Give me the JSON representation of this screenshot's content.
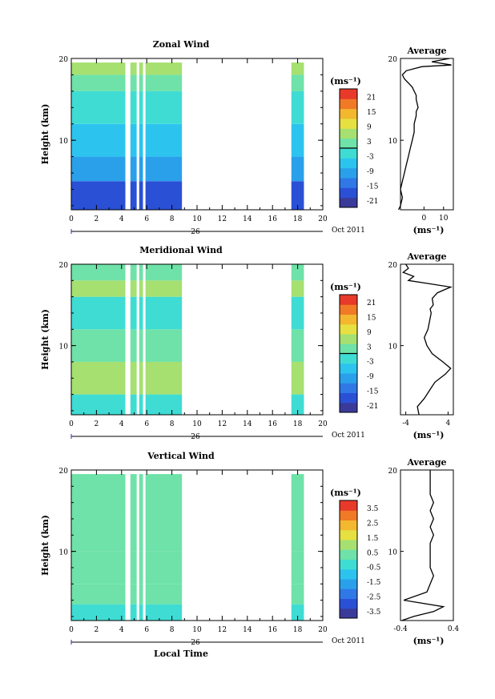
{
  "colors": {
    "zonal": [
      "#3a3a9a",
      "#2a50d6",
      "#2f78e6",
      "#2aa0ea",
      "#2cc4ef",
      "#3fdcd4",
      "#6ee2a8",
      "#a6e070",
      "#e6e040",
      "#f3b730",
      "#f07a26",
      "#e8392a"
    ],
    "vertical": [
      "#3a3a9a",
      "#2a50d6",
      "#2f78e6",
      "#2aa0ea",
      "#2cc4ef",
      "#3fdcd4",
      "#6ee2a8",
      "#a6e070",
      "#e6e040",
      "#f3b730",
      "#f07a26",
      "#e8392a"
    ]
  },
  "chart_data": [
    {
      "type": "heatmap",
      "title": "Zonal Wind",
      "ylabel": "Height (km)",
      "xlim": [
        0,
        20
      ],
      "ylim": [
        1.5,
        20
      ],
      "x_ticks": [
        "0",
        "2",
        "4",
        "6",
        "8",
        "10",
        "12",
        "14",
        "16",
        "18",
        "20"
      ],
      "y_ticks": [
        "20",
        "10"
      ],
      "date_center": "26",
      "date_right": "Oct 2011",
      "gaps": [
        [
          0,
          8.8
        ],
        [
          17.5,
          18.5
        ]
      ],
      "blank_cols": [
        4.3,
        4.7,
        5.2,
        5.4,
        5.7,
        5.9
      ],
      "colorbar": {
        "unit": "(ms⁻¹)",
        "ticks": [
          "21",
          "15",
          "9",
          "3",
          "-3",
          "-9",
          "-15",
          "-21"
        ],
        "min": -24,
        "max": 24,
        "zero_line": true
      },
      "field": [
        {
          "z": [
            1.5,
            5
          ],
          "value": -18
        },
        {
          "z": [
            5,
            8
          ],
          "value": -12
        },
        {
          "z": [
            8,
            12
          ],
          "value": -6
        },
        {
          "z": [
            12,
            16
          ],
          "value": -3
        },
        {
          "z": [
            16,
            18
          ],
          "value": 0
        },
        {
          "z": [
            18,
            19.5
          ],
          "value": 6
        }
      ],
      "average": {
        "title": "Average",
        "xlabel": "(ms⁻¹)",
        "xlim": [
          -12,
          15
        ],
        "x_ticks": [
          "0",
          "10"
        ],
        "x_tick_values": [
          0,
          10
        ],
        "y_ticks": [
          "20",
          "10"
        ],
        "x": [
          -13,
          -12,
          -11,
          -12,
          -11,
          -10,
          -9,
          -8,
          -7,
          -6,
          -5,
          -5,
          -4,
          -4,
          -3,
          -4,
          -4,
          -5,
          -6,
          -8,
          -10,
          -11,
          -9,
          -1,
          14,
          4,
          13
        ],
        "z": [
          1.5,
          2,
          3,
          4,
          5,
          6,
          7,
          8,
          9,
          10,
          11,
          12,
          13,
          13.5,
          14,
          15,
          15.5,
          16,
          16.5,
          17,
          17.5,
          18,
          18.5,
          19,
          19.2,
          19.6,
          20
        ]
      }
    },
    {
      "type": "heatmap",
      "title": "Meridional Wind",
      "ylabel": "Height (km)",
      "xlim": [
        0,
        20
      ],
      "ylim": [
        1.5,
        20
      ],
      "x_ticks": [
        "0",
        "2",
        "4",
        "6",
        "8",
        "10",
        "12",
        "14",
        "16",
        "18",
        "20"
      ],
      "y_ticks": [
        "20",
        "10"
      ],
      "date_center": "26",
      "date_right": "Oct 2011",
      "gaps": [
        [
          0,
          8.8
        ],
        [
          17.5,
          18.5
        ]
      ],
      "blank_cols": [
        4.3,
        4.7,
        5.2,
        5.4,
        5.7,
        5.9
      ],
      "colorbar": {
        "unit": "(ms⁻¹)",
        "ticks": [
          "21",
          "15",
          "9",
          "3",
          "-3",
          "-9",
          "-15",
          "-21"
        ],
        "min": -24,
        "max": 24,
        "zero_line": true
      },
      "field": [
        {
          "z": [
            1.5,
            4
          ],
          "value": -2
        },
        {
          "z": [
            4,
            8
          ],
          "value": 4
        },
        {
          "z": [
            8,
            12
          ],
          "value": 2
        },
        {
          "z": [
            12,
            16
          ],
          "value": -3
        },
        {
          "z": [
            16,
            18
          ],
          "value": 6
        },
        {
          "z": [
            18,
            20
          ],
          "value": 0
        }
      ],
      "average": {
        "title": "Average",
        "xlabel": "(ms⁻¹)",
        "xlim": [
          -5,
          5
        ],
        "x_ticks": [
          "-4",
          "4"
        ],
        "x_tick_values": [
          -4,
          4
        ],
        "y_ticks": [
          "20",
          "10"
        ],
        "x": [
          -1.5,
          -1.8,
          -0.5,
          0.5,
          1.5,
          3.5,
          4.5,
          3.0,
          1.0,
          0.0,
          -0.5,
          0.2,
          0.5,
          0.8,
          0.6,
          1.2,
          1.0,
          2.0,
          4.5,
          0.5,
          -3.5,
          -2.5,
          -4.5,
          -3.5,
          -4.0
        ],
        "z": [
          1.5,
          2.5,
          3.5,
          4.5,
          5.5,
          6.5,
          7.2,
          8,
          9,
          10,
          11,
          12,
          13,
          14,
          14.5,
          15,
          15.8,
          16.5,
          17.2,
          17.6,
          18,
          18.5,
          19,
          19.5,
          20
        ]
      }
    },
    {
      "type": "heatmap",
      "title": "Vertical Wind",
      "ylabel": "Height (km)",
      "xlabel": "Local Time",
      "xlim": [
        0,
        20
      ],
      "ylim": [
        1.5,
        20
      ],
      "x_ticks": [
        "0",
        "2",
        "4",
        "6",
        "8",
        "10",
        "12",
        "14",
        "16",
        "18",
        "20"
      ],
      "y_ticks": [
        "20",
        "10"
      ],
      "date_center": "26",
      "date_right": "Oct 2011",
      "gaps": [
        [
          0,
          8.8
        ],
        [
          17.5,
          18.5
        ]
      ],
      "blank_cols": [
        4.3,
        4.7,
        5.2,
        5.4,
        5.7,
        5.9
      ],
      "colorbar": {
        "unit": "(ms⁻¹)",
        "ticks": [
          "3.5",
          "2.5",
          "1.5",
          "0.5",
          "-0.5",
          "-1.5",
          "-2.5",
          "-3.5"
        ],
        "min": -4,
        "max": 4,
        "zero_line": false
      },
      "field": [
        {
          "z": [
            1.5,
            3.5
          ],
          "value": -0.5
        },
        {
          "z": [
            3.5,
            6
          ],
          "value": 0.2
        },
        {
          "z": [
            6,
            10
          ],
          "value": 0.5
        },
        {
          "z": [
            10,
            14
          ],
          "value": 0.3
        },
        {
          "z": [
            14,
            19.5
          ],
          "value": 0.6
        }
      ],
      "average": {
        "title": "Average",
        "xlabel": "(ms⁻¹)",
        "xlim": [
          -0.4,
          0.4
        ],
        "x_ticks": [
          "-0.4",
          "0.4"
        ],
        "x_tick_values": [
          -0.4,
          0.4
        ],
        "y_ticks": [
          "20",
          "10"
        ],
        "x": [
          -0.38,
          -0.2,
          0.1,
          0.25,
          -0.35,
          0.0,
          0.05,
          0.1,
          0.05,
          0.05,
          0.05,
          0.05,
          0.1,
          0.05,
          0.1,
          0.05,
          0.1,
          0.05,
          0.05,
          0.05
        ],
        "z": [
          1.5,
          2,
          2.6,
          3.2,
          4,
          5,
          6,
          7,
          8,
          9,
          10,
          11,
          12,
          13,
          14,
          15,
          16,
          17,
          18.5,
          20
        ]
      }
    }
  ]
}
